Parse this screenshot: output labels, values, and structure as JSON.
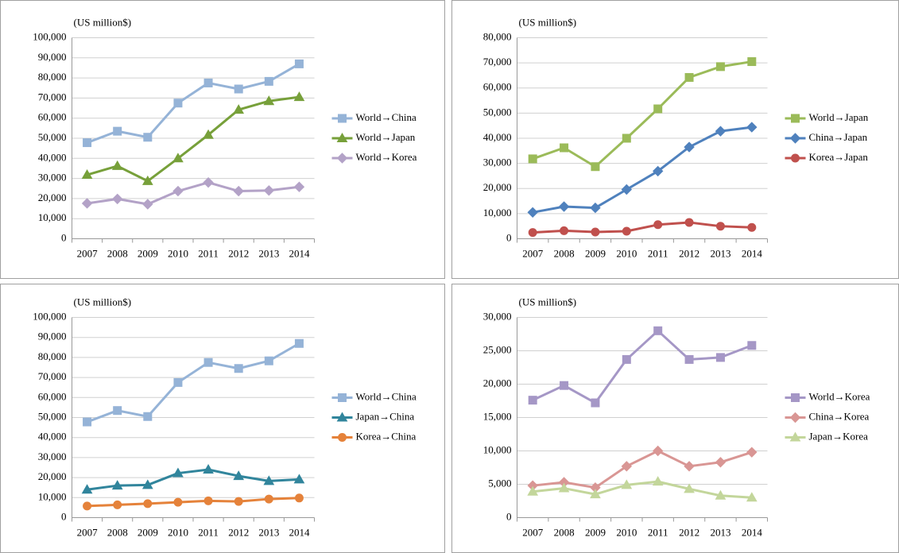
{
  "chart_data": [
    {
      "type": "line",
      "y_label": "(US million$)",
      "categories": [
        "2007",
        "2008",
        "2009",
        "2010",
        "2011",
        "2012",
        "2013",
        "2014"
      ],
      "ylim": [
        0,
        100000
      ],
      "yticks": [
        0,
        {
          "value": 10000,
          "label": "10,000"
        },
        {
          "value": 20000,
          "label": "20,000"
        },
        {
          "value": 30000,
          "label": "30,000"
        },
        {
          "value": 40000,
          "label": "40,000"
        },
        {
          "value": 50000,
          "label": "50,000"
        },
        {
          "value": 60000,
          "label": "60,000"
        },
        {
          "value": 70000,
          "label": "70,000"
        },
        {
          "value": 80000,
          "label": "80,000"
        },
        {
          "value": 90000,
          "label": "90,000"
        },
        {
          "value": 100000,
          "label": "100,000"
        }
      ],
      "grid": true,
      "legend": "right",
      "series": [
        {
          "name": "World→China",
          "color": "#95b3d7",
          "marker": "square",
          "values": [
            47800,
            53500,
            50500,
            67500,
            77500,
            74500,
            78300,
            87000
          ]
        },
        {
          "name": "World→Japan",
          "color": "#77a03a",
          "marker": "triangle",
          "values": [
            31800,
            36200,
            28700,
            40000,
            51700,
            64200,
            68500,
            70500
          ]
        },
        {
          "name": "World→Korea",
          "color": "#b3a2c7",
          "marker": "diamond",
          "values": [
            17600,
            19800,
            17200,
            23700,
            28000,
            23700,
            24000,
            25800
          ]
        }
      ]
    },
    {
      "type": "line",
      "y_label": "(US million$)",
      "categories": [
        "2007",
        "2008",
        "2009",
        "2010",
        "2011",
        "2012",
        "2013",
        "2014"
      ],
      "ylim": [
        0,
        80000
      ],
      "yticks": [
        0,
        {
          "value": 10000,
          "label": "10,000"
        },
        {
          "value": 20000,
          "label": "20,000"
        },
        {
          "value": 30000,
          "label": "30,000"
        },
        {
          "value": 40000,
          "label": "40,000"
        },
        {
          "value": 50000,
          "label": "50,000"
        },
        {
          "value": 60000,
          "label": "60,000"
        },
        {
          "value": 70000,
          "label": "70,000"
        },
        {
          "value": 80000,
          "label": "80,000"
        }
      ],
      "grid": true,
      "legend": "right",
      "series": [
        {
          "name": "World→Japan",
          "color": "#9bbb59",
          "marker": "square",
          "values": [
            31800,
            36200,
            28700,
            40000,
            51700,
            64200,
            68500,
            70500
          ]
        },
        {
          "name": "China→Japan",
          "color": "#4f81bd",
          "marker": "diamond",
          "values": [
            10500,
            12800,
            12300,
            19600,
            26900,
            36500,
            42800,
            44400
          ]
        },
        {
          "name": "Korea→Japan",
          "color": "#c0504d",
          "marker": "circle",
          "values": [
            2500,
            3200,
            2700,
            3000,
            5600,
            6500,
            5000,
            4500
          ]
        }
      ]
    },
    {
      "type": "line",
      "y_label": "(US million$)",
      "categories": [
        "2007",
        "2008",
        "2009",
        "2010",
        "2011",
        "2012",
        "2013",
        "2014"
      ],
      "ylim": [
        0,
        100000
      ],
      "yticks": [
        0,
        {
          "value": 10000,
          "label": "10,000"
        },
        {
          "value": 20000,
          "label": "20,000"
        },
        {
          "value": 30000,
          "label": "30,000"
        },
        {
          "value": 40000,
          "label": "40,000"
        },
        {
          "value": 50000,
          "label": "50,000"
        },
        {
          "value": 60000,
          "label": "60,000"
        },
        {
          "value": 70000,
          "label": "70,000"
        },
        {
          "value": 80000,
          "label": "80,000"
        },
        {
          "value": 90000,
          "label": "90,000"
        },
        {
          "value": 100000,
          "label": "100,000"
        }
      ],
      "grid": true,
      "legend": "right",
      "series": [
        {
          "name": "World→China",
          "color": "#95b3d7",
          "marker": "square",
          "values": [
            47800,
            53500,
            50500,
            67500,
            77500,
            74500,
            78300,
            87000
          ]
        },
        {
          "name": "Japan→China",
          "color": "#31859c",
          "marker": "triangle",
          "values": [
            14000,
            16000,
            16300,
            22200,
            24000,
            20800,
            18300,
            19100
          ]
        },
        {
          "name": "Korea→China",
          "color": "#e5823a",
          "marker": "circle",
          "values": [
            5800,
            6400,
            7000,
            7700,
            8400,
            8100,
            9300,
            9800
          ]
        }
      ]
    },
    {
      "type": "line",
      "y_label": "(US million$)",
      "categories": [
        "2007",
        "2008",
        "2009",
        "2010",
        "2011",
        "2012",
        "2013",
        "2014"
      ],
      "ylim": [
        0,
        30000
      ],
      "yticks": [
        0,
        {
          "value": 5000,
          "label": "5,000"
        },
        {
          "value": 10000,
          "label": "10,000"
        },
        {
          "value": 15000,
          "label": "15,000"
        },
        {
          "value": 20000,
          "label": "20,000"
        },
        {
          "value": 25000,
          "label": "25,000"
        },
        {
          "value": 30000,
          "label": "30,000"
        }
      ],
      "grid": true,
      "legend": "right",
      "series": [
        {
          "name": "World→Korea",
          "color": "#a597c6",
          "marker": "square",
          "values": [
            17600,
            19800,
            17200,
            23700,
            28000,
            23700,
            24000,
            25800
          ]
        },
        {
          "name": "China→Korea",
          "color": "#d99694",
          "marker": "diamond",
          "values": [
            4800,
            5300,
            4500,
            7700,
            10000,
            7700,
            8300,
            9800
          ]
        },
        {
          "name": "Japan→Korea",
          "color": "#c3d69b",
          "marker": "triangle",
          "values": [
            3900,
            4400,
            3500,
            4900,
            5400,
            4300,
            3300,
            3000
          ]
        }
      ]
    }
  ]
}
